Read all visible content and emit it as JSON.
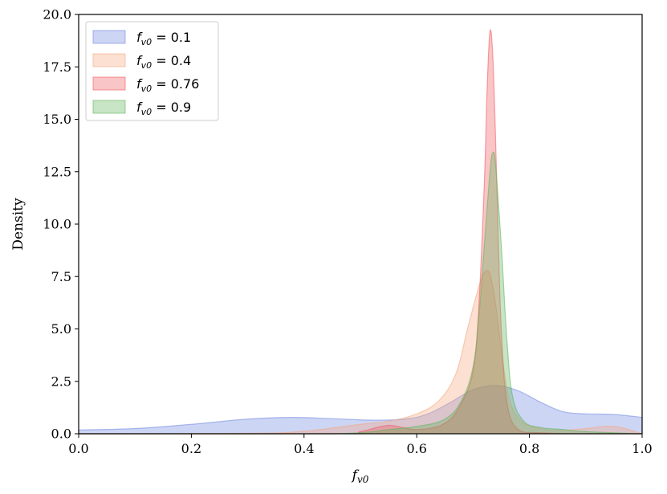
{
  "chart_data": {
    "type": "area",
    "xlabel": "f_v0",
    "ylabel": "Density",
    "xlim": [
      0.0,
      1.0
    ],
    "ylim": [
      0.0,
      20.0
    ],
    "x_ticks": [
      "0.0",
      "0.2",
      "0.4",
      "0.6",
      "0.8",
      "1.0"
    ],
    "y_ticks": [
      "0.0",
      "2.5",
      "5.0",
      "7.5",
      "10.0",
      "12.5",
      "15.0",
      "17.5",
      "20.0"
    ],
    "legend_position": "top-left",
    "series": [
      {
        "name": "f_v0 = 0.1",
        "legend_main": "f",
        "legend_sub": "v0",
        "legend_rest": " = 0.1",
        "color": "#6f86e0",
        "x": [
          0.0,
          0.1,
          0.2,
          0.3,
          0.38,
          0.45,
          0.52,
          0.58,
          0.62,
          0.66,
          0.7,
          0.74,
          0.78,
          0.82,
          0.86,
          0.9,
          0.95,
          1.0
        ],
        "y": [
          0.18,
          0.25,
          0.45,
          0.7,
          0.78,
          0.72,
          0.65,
          0.7,
          0.95,
          1.5,
          2.1,
          2.3,
          2.05,
          1.5,
          1.05,
          0.95,
          0.92,
          0.78
        ]
      },
      {
        "name": "f_v0 = 0.4",
        "legend_main": "f",
        "legend_sub": "v0",
        "legend_rest": " = 0.4",
        "color": "#f5a57f",
        "x": [
          0.0,
          0.3,
          0.4,
          0.5,
          0.55,
          0.6,
          0.64,
          0.67,
          0.69,
          0.71,
          0.72,
          0.73,
          0.74,
          0.75,
          0.76,
          0.77,
          0.79,
          0.82,
          0.85,
          0.9,
          0.95,
          1.0
        ],
        "y": [
          0.0,
          0.02,
          0.12,
          0.45,
          0.6,
          0.95,
          1.6,
          2.9,
          5.0,
          7.0,
          7.7,
          7.6,
          6.2,
          4.0,
          2.2,
          1.2,
          0.5,
          0.25,
          0.15,
          0.25,
          0.35,
          0.0
        ]
      },
      {
        "name": "f_v0 = 0.76",
        "legend_main": "f",
        "legend_sub": "v0",
        "legend_rest": " = 0.76",
        "color": "#f0595f",
        "x": [
          0.0,
          0.45,
          0.5,
          0.55,
          0.6,
          0.65,
          0.68,
          0.7,
          0.71,
          0.72,
          0.725,
          0.73,
          0.735,
          0.74,
          0.745,
          0.75,
          0.76,
          0.78,
          0.82,
          0.9,
          1.0
        ],
        "y": [
          0.0,
          0.0,
          0.1,
          0.4,
          0.2,
          0.5,
          1.5,
          3.0,
          6.0,
          12.0,
          16.5,
          19.2,
          18.0,
          14.0,
          9.0,
          5.0,
          1.5,
          0.2,
          0.05,
          0.0,
          0.0
        ]
      },
      {
        "name": "f_v0 = 0.9",
        "legend_main": "f",
        "legend_sub": "v0",
        "legend_rest": " = 0.9",
        "color": "#5fb35a",
        "x": [
          0.0,
          0.4,
          0.5,
          0.55,
          0.6,
          0.65,
          0.68,
          0.7,
          0.71,
          0.72,
          0.73,
          0.735,
          0.74,
          0.75,
          0.76,
          0.77,
          0.79,
          0.82,
          0.86,
          0.9,
          1.0
        ],
        "y": [
          0.0,
          0.0,
          0.05,
          0.2,
          0.35,
          0.7,
          1.6,
          3.2,
          5.5,
          9.0,
          12.5,
          13.4,
          12.8,
          9.0,
          4.5,
          1.8,
          0.6,
          0.3,
          0.2,
          0.1,
          0.0
        ]
      }
    ]
  }
}
